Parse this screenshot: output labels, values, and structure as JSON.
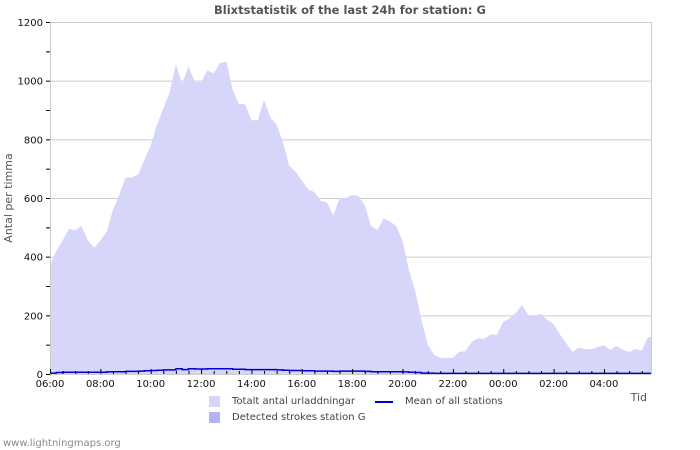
{
  "title": "Blixtstatistik of the last 24h for station: G",
  "footer": "www.lightningmaps.org",
  "colors": {
    "total_fill": "#d6d6fa",
    "station_fill": "#b4b4f5",
    "mean_line": "#0000cc",
    "grid": "#cccccc"
  },
  "legend": {
    "total": "Totalt antal urladdningar",
    "station": "Detected strokes station G",
    "mean": "Mean of all stations"
  },
  "chart_data": {
    "type": "area",
    "title": "Blixtstatistik of the last 24h for station: G",
    "xlabel": "Tid",
    "ylabel": "Antal per timma",
    "ylim": [
      0,
      1200
    ],
    "yticks": [
      0,
      200,
      400,
      600,
      800,
      1000,
      1200
    ],
    "xticks": [
      "06:00",
      "08:00",
      "10:00",
      "12:00",
      "14:00",
      "16:00",
      "18:00",
      "20:00",
      "22:00",
      "00:00",
      "02:00",
      "04:00"
    ],
    "grid": true,
    "legend_position": "bottom",
    "x": [
      "06:00",
      "06:15",
      "06:30",
      "06:45",
      "07:00",
      "07:15",
      "07:30",
      "07:45",
      "08:00",
      "08:15",
      "08:30",
      "08:45",
      "09:00",
      "09:15",
      "09:30",
      "09:45",
      "10:00",
      "10:15",
      "10:30",
      "10:45",
      "11:00",
      "11:15",
      "11:30",
      "11:45",
      "12:00",
      "12:15",
      "12:30",
      "12:45",
      "13:00",
      "13:15",
      "13:30",
      "13:45",
      "14:00",
      "14:15",
      "14:30",
      "14:45",
      "15:00",
      "15:15",
      "15:30",
      "15:45",
      "16:00",
      "16:15",
      "16:30",
      "16:45",
      "17:00",
      "17:15",
      "17:30",
      "17:45",
      "18:00",
      "18:15",
      "18:30",
      "18:45",
      "19:00",
      "19:15",
      "19:30",
      "19:45",
      "20:00",
      "20:15",
      "20:30",
      "20:45",
      "21:00",
      "21:15",
      "21:30",
      "21:45",
      "22:00",
      "22:15",
      "22:30",
      "22:45",
      "23:00",
      "23:15",
      "23:30",
      "23:45",
      "00:00",
      "00:15",
      "00:30",
      "00:45",
      "01:00",
      "01:15",
      "01:30",
      "01:45",
      "02:00",
      "02:15",
      "02:30",
      "02:45",
      "03:00",
      "03:15",
      "03:30",
      "03:45",
      "04:00",
      "04:15",
      "04:30",
      "04:45",
      "05:00",
      "05:15",
      "05:30",
      "05:45"
    ],
    "series": [
      {
        "name": "Totalt antal urladdningar",
        "values": [
          370,
          420,
          455,
          495,
          490,
          505,
          455,
          430,
          455,
          485,
          560,
          610,
          670,
          670,
          680,
          730,
          780,
          850,
          905,
          960,
          1055,
          990,
          1050,
          995,
          995,
          1035,
          1025,
          1060,
          1065,
          970,
          920,
          920,
          865,
          865,
          935,
          875,
          850,
          790,
          710,
          690,
          660,
          630,
          620,
          590,
          585,
          540,
          600,
          600,
          610,
          607,
          575,
          505,
          490,
          530,
          520,
          505,
          455,
          355,
          285,
          185,
          100,
          65,
          55,
          55,
          55,
          75,
          78,
          110,
          122,
          120,
          135,
          133,
          178,
          190,
          208,
          235,
          200,
          198,
          205,
          185,
          170,
          135,
          105,
          75,
          90,
          85,
          85,
          92,
          98,
          82,
          95,
          82,
          75,
          85,
          80,
          125
        ]
      },
      {
        "name": "Detected strokes station G",
        "values": [
          0,
          0,
          0,
          0,
          0,
          0,
          0,
          0,
          0,
          0,
          0,
          0,
          0,
          0,
          0,
          0,
          0,
          0,
          0,
          0,
          0,
          0,
          0,
          0,
          0,
          0,
          0,
          0,
          0,
          0,
          0,
          0,
          0,
          0,
          0,
          0,
          0,
          0,
          0,
          0,
          0,
          0,
          0,
          0,
          0,
          0,
          0,
          0,
          0,
          0,
          0,
          0,
          0,
          0,
          0,
          0,
          0,
          0,
          0,
          0,
          0,
          0,
          0,
          0,
          0,
          0,
          0,
          0,
          0,
          0,
          0,
          0,
          0,
          0,
          0,
          0,
          0,
          0,
          0,
          0,
          0,
          0,
          0,
          0,
          0,
          0,
          0,
          0,
          0,
          0,
          0,
          0,
          0,
          0,
          0,
          0
        ]
      },
      {
        "name": "Mean of all stations",
        "values": [
          3,
          5,
          6,
          6,
          6,
          6,
          6,
          6,
          6,
          7,
          8,
          8,
          9,
          9,
          10,
          11,
          12,
          13,
          14,
          14,
          18,
          15,
          18,
          17,
          17,
          18,
          18,
          18,
          18,
          16,
          16,
          15,
          15,
          15,
          15,
          15,
          14,
          13,
          12,
          12,
          11,
          11,
          10,
          10,
          10,
          9,
          10,
          10,
          10,
          10,
          9,
          8,
          8,
          8,
          8,
          8,
          7,
          6,
          5,
          3,
          3,
          2,
          2,
          2,
          2,
          2,
          2,
          2,
          2,
          2,
          2,
          2,
          2,
          2,
          2,
          2,
          2,
          2,
          2,
          2,
          2,
          2,
          2,
          2,
          2,
          2,
          2,
          2,
          2,
          2,
          2,
          2,
          2,
          2,
          2,
          2
        ]
      }
    ]
  }
}
